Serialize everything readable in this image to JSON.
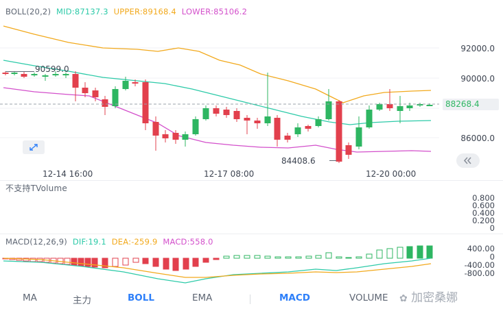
{
  "boll_legend": {
    "name": "BOLL(20,2)",
    "mid": "MID:87137.3",
    "upper": "UPPER:89168.4",
    "lower": "LOWER:85106.2"
  },
  "price_axis": [
    "92000.0",
    "90000.0",
    "86000.0"
  ],
  "current_price": "88268.4",
  "high_label": "90599.0",
  "low_label": "84408.6",
  "time_axis": [
    "12-14 16:00",
    "12-17 08:00",
    "12-20 00:00"
  ],
  "volume": {
    "label": "不支持TVolume",
    "axis": [
      "0.800",
      "0.600",
      "0.400",
      "0.200",
      "0"
    ]
  },
  "macd_legend": {
    "name": "MACD(12,26,9)",
    "dif": "DIF:19.1",
    "dea": "DEA:-259.9",
    "macd": "MACD:558.0"
  },
  "macd_axis": [
    "400.00",
    "0",
    "-400.00",
    "-800.00"
  ],
  "tabs": [
    "MA",
    "主力",
    "BOLL",
    "EMA",
    "MACD",
    "VOLUME"
  ],
  "watermark": "加密桑娜",
  "colors": {
    "up": "#2eb662",
    "down": "#e2404d",
    "upper": "#f2a91c",
    "mid": "#2ccaa8",
    "lower": "#d34fcb",
    "dea": "#f2a91c",
    "dif": "#2ccaa8",
    "active": "#2d7ff9"
  }
}
